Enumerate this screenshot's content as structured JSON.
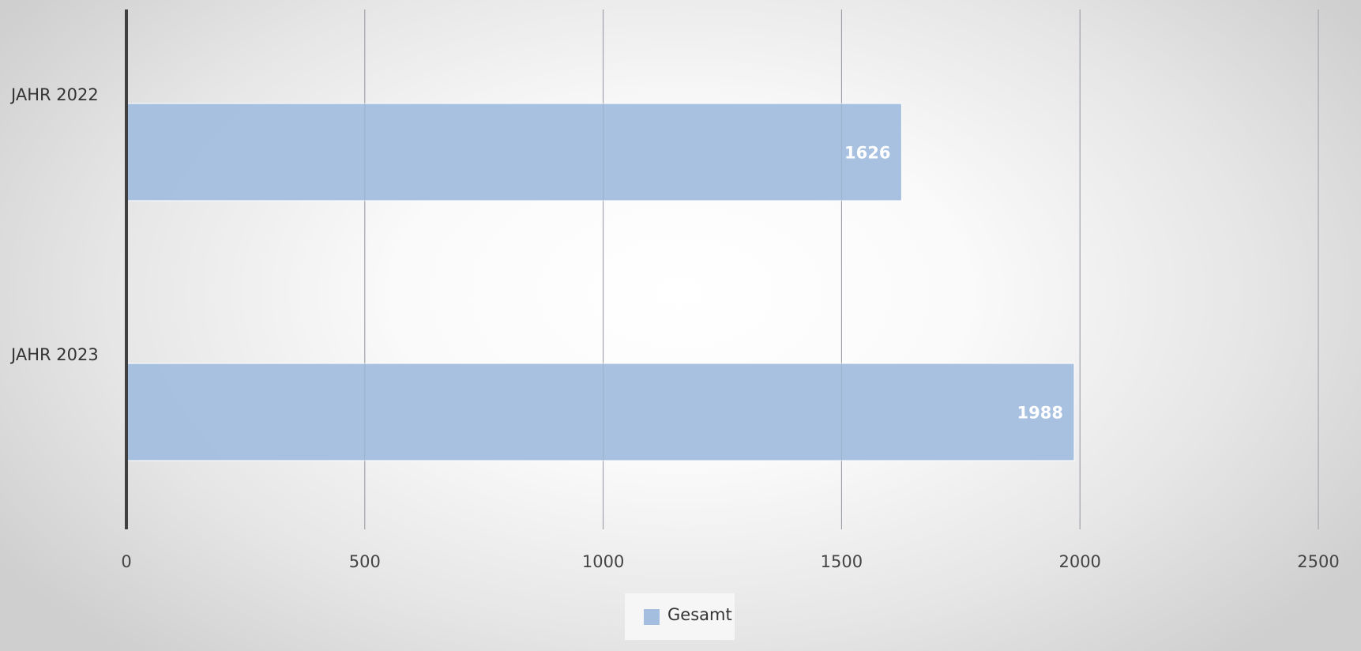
{
  "chart_data": {
    "type": "bar",
    "orientation": "horizontal",
    "categories": [
      "JAHR 2022",
      "JAHR 2023"
    ],
    "series": [
      {
        "name": "Gesamt",
        "values": [
          1626,
          1988
        ],
        "color": "#a4bedf"
      }
    ],
    "xlim": [
      0,
      2500
    ],
    "xticks": [
      "0",
      "500",
      "1000",
      "1500",
      "2000",
      "2500"
    ],
    "grid": true,
    "legend_position": "bottom",
    "data_labels": true
  }
}
